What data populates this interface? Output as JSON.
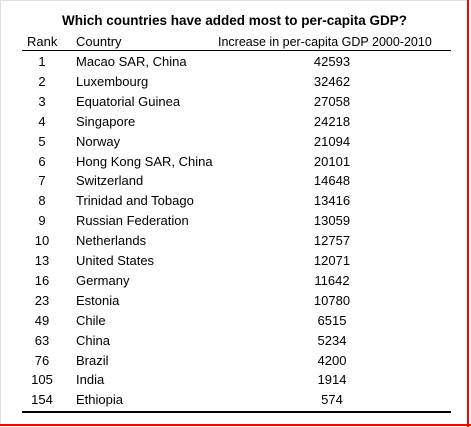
{
  "chart_data": {
    "type": "table",
    "title": "Which countries have added most to per-capita GDP?",
    "columns": [
      "Rank",
      "Country",
      "Increase in per-capita GDP 2000-2010"
    ],
    "rows": [
      {
        "rank": "1",
        "country": "Macao SAR, China",
        "value": 42593
      },
      {
        "rank": "2",
        "country": "Luxembourg",
        "value": 32462
      },
      {
        "rank": "3",
        "country": "Equatorial Guinea",
        "value": 27058
      },
      {
        "rank": "4",
        "country": "Singapore",
        "value": 24218
      },
      {
        "rank": "5",
        "country": "Norway",
        "value": 21094
      },
      {
        "rank": "6",
        "country": "Hong Kong SAR, China",
        "value": 20101
      },
      {
        "rank": "7",
        "country": "Switzerland",
        "value": 14648
      },
      {
        "rank": "8",
        "country": "Trinidad and Tobago",
        "value": 13416
      },
      {
        "rank": "9",
        "country": "Russian Federation",
        "value": 13059
      },
      {
        "rank": "10",
        "country": "Netherlands",
        "value": 12757
      },
      {
        "rank": "13",
        "country": "United States",
        "value": 12071
      },
      {
        "rank": "16",
        "country": "Germany",
        "value": 11642
      },
      {
        "rank": "23",
        "country": "Estonia",
        "value": 10780
      },
      {
        "rank": "49",
        "country": "Chile",
        "value": 6515
      },
      {
        "rank": "63",
        "country": "China",
        "value": 5234
      },
      {
        "rank": "76",
        "country": "Brazil",
        "value": 4200
      },
      {
        "rank": "105",
        "country": "India",
        "value": 1914
      },
      {
        "rank": "154",
        "country": "Ethiopia",
        "value": 574
      }
    ]
  },
  "colors": {
    "border_accent": "#ff0000",
    "rule": "#000000"
  }
}
